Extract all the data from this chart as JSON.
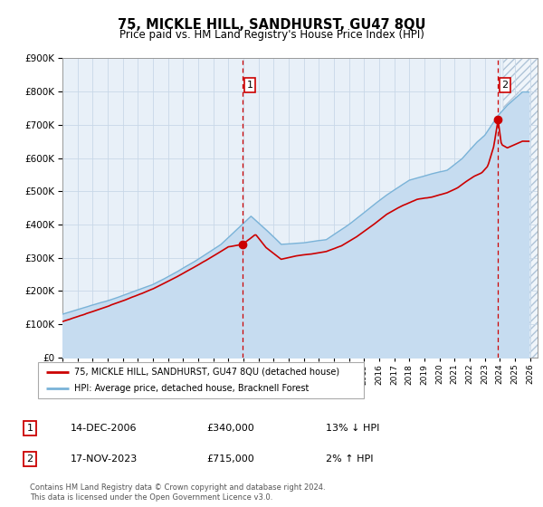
{
  "title": "75, MICKLE HILL, SANDHURST, GU47 8QU",
  "subtitle": "Price paid vs. HM Land Registry's House Price Index (HPI)",
  "legend_line1": "75, MICKLE HILL, SANDHURST, GU47 8QU (detached house)",
  "legend_line2": "HPI: Average price, detached house, Bracknell Forest",
  "annotation1_label": "1",
  "annotation1_date": "14-DEC-2006",
  "annotation1_price": "£340,000",
  "annotation1_hpi": "13% ↓ HPI",
  "annotation2_label": "2",
  "annotation2_date": "17-NOV-2023",
  "annotation2_price": "£715,000",
  "annotation2_hpi": "2% ↑ HPI",
  "footnote_line1": "Contains HM Land Registry data © Crown copyright and database right 2024.",
  "footnote_line2": "This data is licensed under the Open Government Licence v3.0.",
  "sale1_year": 2006.96,
  "sale1_value": 340000,
  "sale2_year": 2023.88,
  "sale2_value": 715000,
  "hpi_fill_color": "#c6dcf0",
  "hpi_line_color": "#7ab3d8",
  "property_color": "#cc0000",
  "vline_color": "#cc0000",
  "bg_color": "#e8f0f8",
  "grid_color": "#c8d8e8",
  "ylim_min": 0,
  "ylim_max": 900000,
  "xlim_start": 1995.0,
  "xlim_end": 2026.5,
  "hatch_start": 2024.2
}
